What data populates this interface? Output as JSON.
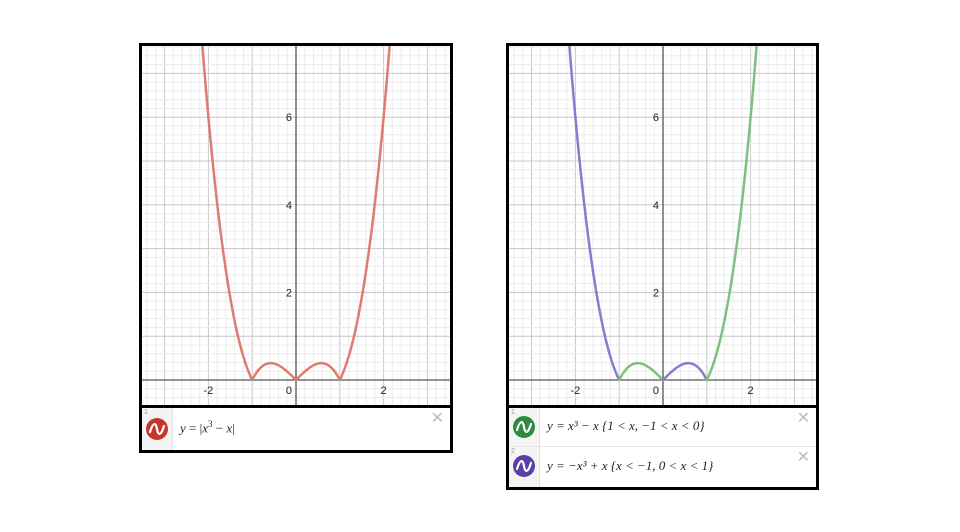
{
  "panels": [
    {
      "graph": {
        "x_ticks": [
          "-2",
          "0",
          "2"
        ],
        "y_ticks": [
          "6",
          "4",
          "2"
        ],
        "curves": [
          {
            "fn": "abs_cubic",
            "domain": [
              -3.2,
              3.2
            ],
            "color": "#e07b72"
          }
        ]
      },
      "expressions": [
        {
          "number": "1",
          "icon": "function-wave-icon",
          "color": "#c8352b",
          "parts": {
            "y": "y",
            "eq": " = |",
            "x1": "x",
            "exp": "3",
            "rest": " − ",
            "x2": "x",
            "close": "|"
          },
          "close_label": "✕"
        }
      ]
    },
    {
      "graph": {
        "x_ticks": [
          "-2",
          "0",
          "2"
        ],
        "y_ticks": [
          "6",
          "4",
          "2"
        ],
        "curves": [
          {
            "fn": "neg_cubic",
            "domain": [
              -3.2,
              -1
            ],
            "color": "#8b7ad0"
          },
          {
            "fn": "pos_cubic",
            "domain": [
              -1,
              0
            ],
            "color": "#7fbf7f"
          },
          {
            "fn": "neg_cubic",
            "domain": [
              0,
              1
            ],
            "color": "#8b7ad0"
          },
          {
            "fn": "pos_cubic",
            "domain": [
              1,
              3.2
            ],
            "color": "#7fbf7f"
          }
        ]
      },
      "expressions": [
        {
          "number": "1",
          "icon": "function-wave-icon",
          "color": "#2d8a3e",
          "text": "y = x³ − x {1 < x, −1 < x < 0}",
          "close_label": "✕"
        },
        {
          "number": "2",
          "icon": "function-wave-icon",
          "color": "#5b3fa8",
          "text": "y = −x³ + x {x  <  −1, 0  <  x  <  1}",
          "close_label": "✕"
        }
      ]
    }
  ]
}
